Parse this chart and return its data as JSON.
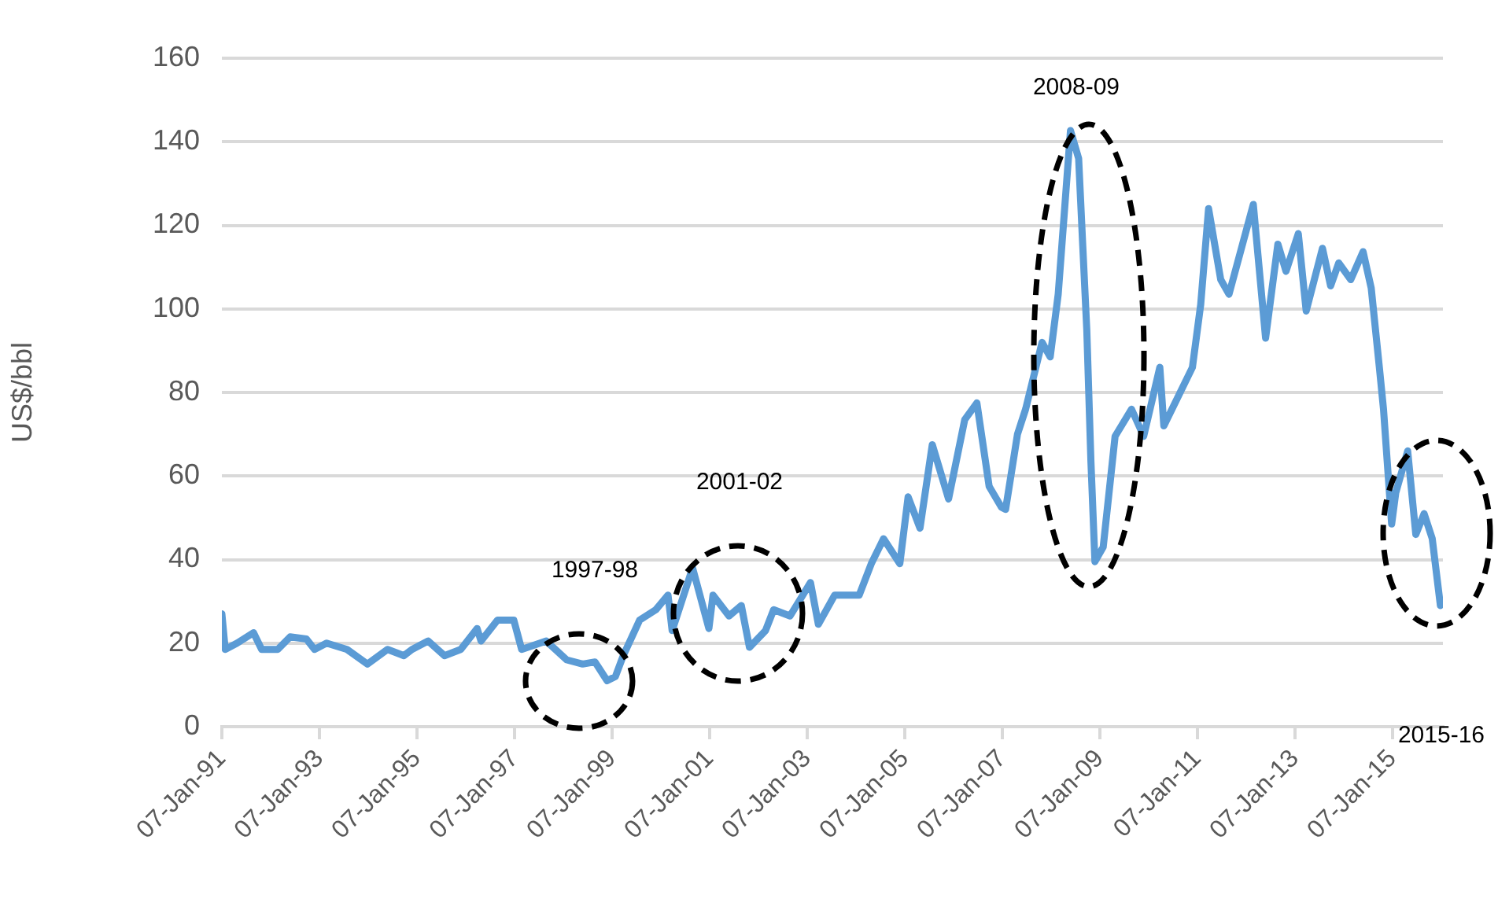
{
  "chart_data": {
    "type": "line",
    "ylabel": "US$/bbl",
    "x": [
      "1991-01-07",
      "1991-02",
      "1991-05",
      "1991-09",
      "1991-11",
      "1992-03",
      "1992-06",
      "1992-10",
      "1992-12",
      "1993-03",
      "1993-08",
      "1994-01",
      "1994-06",
      "1994-10",
      "1994-12",
      "1995-04",
      "1995-08",
      "1995-12",
      "1996-04",
      "1996-05",
      "1996-09",
      "1997-01",
      "1997-03",
      "1997-09",
      "1998-02",
      "1998-06",
      "1998-09",
      "1998-12",
      "1999-02",
      "1999-04",
      "1999-08",
      "1999-12",
      "2000-03",
      "2000-04",
      "2000-09",
      "2001-01",
      "2001-02",
      "2001-06",
      "2001-09",
      "2001-11",
      "2002-03",
      "2002-05",
      "2002-09",
      "2003-02",
      "2003-04",
      "2003-08",
      "2004-02",
      "2004-05",
      "2004-08",
      "2004-12",
      "2005-02",
      "2005-05",
      "2005-08",
      "2005-12",
      "2006-04",
      "2006-07",
      "2006-10",
      "2007-01",
      "2007-02",
      "2007-05",
      "2007-07",
      "2007-11",
      "2008-01",
      "2008-03",
      "2008-06",
      "2008-08",
      "2008-09",
      "2008-10",
      "2008-11",
      "2008-12",
      "2009-02",
      "2009-05",
      "2009-09",
      "2009-12",
      "2010-04",
      "2010-05",
      "2010-12",
      "2011-02",
      "2011-04",
      "2011-07",
      "2011-09",
      "2012-03",
      "2012-06",
      "2012-09",
      "2012-11",
      "2013-02",
      "2013-04",
      "2013-08",
      "2013-10",
      "2013-12",
      "2014-03",
      "2014-06",
      "2014-08",
      "2014-10",
      "2014-11",
      "2015-01",
      "2015-02",
      "2015-05",
      "2015-07",
      "2015-09",
      "2015-11",
      "2016-01"
    ],
    "series": [
      {
        "color": "#5b9bd5",
        "values": [
          27,
          18.5,
          20,
          22.5,
          18.5,
          18.5,
          21.5,
          21,
          18.5,
          20,
          18.5,
          15,
          18.5,
          17,
          18.5,
          20.5,
          17,
          18.5,
          23.5,
          20.5,
          25.5,
          25.5,
          18.5,
          20.5,
          16,
          15,
          15.5,
          11,
          12,
          17,
          25.5,
          28,
          31.5,
          23,
          38,
          23.5,
          31.5,
          26.5,
          29,
          19,
          23,
          28,
          26.5,
          34.5,
          24.5,
          31.5,
          31.5,
          39,
          45,
          39,
          55,
          47.5,
          67.5,
          54.5,
          73.5,
          77.5,
          57.5,
          52.5,
          52,
          70,
          76,
          92,
          88.5,
          103.5,
          142.7,
          136,
          115,
          95,
          63.5,
          39.5,
          43,
          69.5,
          76,
          69.5,
          86,
          72,
          86,
          101,
          124,
          107,
          103.5,
          125,
          93,
          115.5,
          109,
          118,
          99.5,
          114.5,
          105.5,
          111,
          107,
          113.7,
          105,
          86,
          76,
          48.5,
          56,
          66,
          46,
          51,
          45,
          29
        ]
      }
    ],
    "xlim": [
      "1991-01-07",
      "2016-01-20"
    ],
    "xticks": [
      {
        "value": "1991-01-07",
        "label": "07-Jan-91"
      },
      {
        "value": "1993-01-07",
        "label": "07-Jan-93"
      },
      {
        "value": "1995-01-07",
        "label": "07-Jan-95"
      },
      {
        "value": "1997-01-07",
        "label": "07-Jan-97"
      },
      {
        "value": "1999-01-07",
        "label": "07-Jan-99"
      },
      {
        "value": "2001-01-07",
        "label": "07-Jan-01"
      },
      {
        "value": "2003-01-07",
        "label": "07-Jan-03"
      },
      {
        "value": "2005-01-07",
        "label": "07-Jan-05"
      },
      {
        "value": "2007-01-07",
        "label": "07-Jan-07"
      },
      {
        "value": "2009-01-07",
        "label": "07-Jan-09"
      },
      {
        "value": "2011-01-07",
        "label": "07-Jan-11"
      },
      {
        "value": "2013-01-07",
        "label": "07-Jan-13"
      },
      {
        "value": "2015-01-07",
        "label": "07-Jan-15"
      }
    ],
    "ylim": [
      0,
      160
    ],
    "yticks": [
      0,
      20,
      40,
      60,
      80,
      100,
      120,
      140,
      160
    ],
    "grid": "y",
    "marker": "none",
    "line_style": "solid",
    "legend": false,
    "annotations": [
      "1997-98",
      "2001-02",
      "2008-09",
      "2015-16"
    ]
  }
}
